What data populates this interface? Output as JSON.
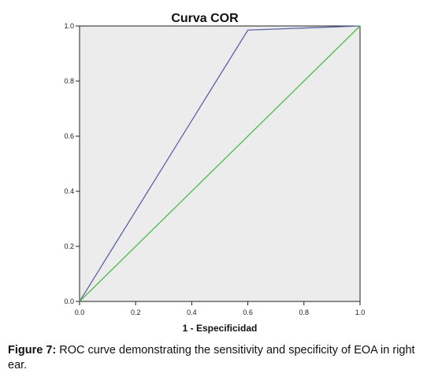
{
  "chart_data": {
    "type": "line",
    "title": "Curva COR",
    "xlabel": "1 - Especificidad",
    "ylabel": "",
    "xlim": [
      0.0,
      1.0
    ],
    "ylim": [
      0.0,
      1.0
    ],
    "x_ticks": [
      "0.0",
      "0.2",
      "0.4",
      "0.6",
      "0.8",
      "1.0"
    ],
    "y_ticks": [
      "0.0",
      "0.2",
      "0.4",
      "0.6",
      "0.8",
      "1.0"
    ],
    "grid": false,
    "legend": "none",
    "series": [
      {
        "color": "#5a62a6",
        "x": [
          0.0,
          0.6,
          1.0
        ],
        "y": [
          0.0,
          0.985,
          1.0
        ]
      },
      {
        "color": "#4cbd4c",
        "x": [
          0.0,
          1.0
        ],
        "y": [
          0.0,
          1.0
        ]
      }
    ],
    "plot_background": "#ececec"
  },
  "caption": {
    "label": "Figure 7:",
    "text": " ROC curve demonstrating the sensitivity and specificity of EOA in right ear."
  }
}
